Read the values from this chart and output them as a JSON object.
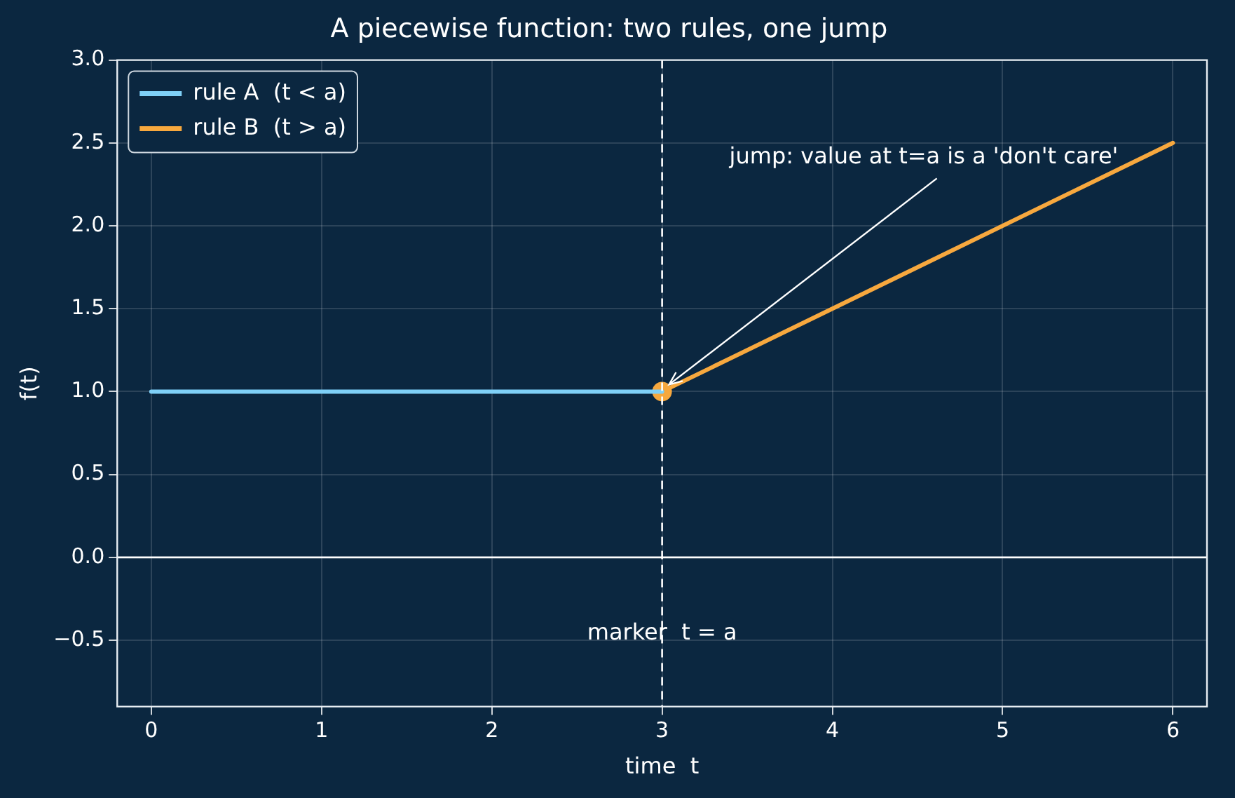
{
  "chart_data": {
    "type": "line",
    "title": "A piecewise function: two rules, one jump",
    "xlabel": "time  t",
    "ylabel": "f(t)",
    "series": [
      {
        "name": "rule A  (t < a)",
        "color": "#7fd0f7",
        "x": [
          0,
          3
        ],
        "values": [
          1,
          1
        ]
      },
      {
        "name": "rule B  (t > a)",
        "color": "#f7a83e",
        "x": [
          3,
          6
        ],
        "values": [
          1,
          2.5
        ]
      },
      {
        "type": "scatter",
        "color": "#f7a83e",
        "marker": "circle",
        "x": [
          3
        ],
        "values": [
          1
        ]
      }
    ],
    "xlim": [
      -0.2,
      6.2
    ],
    "xticks": [
      0,
      1,
      2,
      3,
      4,
      5,
      6
    ],
    "ylim": [
      -0.9,
      3.0
    ],
    "yticks": [
      {
        "value": -0.5,
        "label": "−0.5"
      },
      {
        "value": 0,
        "label": "0.0"
      },
      {
        "value": 0.5,
        "label": "0.5"
      },
      {
        "value": 1,
        "label": "1.0"
      },
      {
        "value": 1.5,
        "label": "1.5"
      },
      {
        "value": 2,
        "label": "2.0"
      },
      {
        "value": 2.5,
        "label": "2.5"
      },
      {
        "value": 3,
        "label": "3.0"
      }
    ],
    "ref_lines": [
      {
        "axis": "x",
        "value": 3,
        "label": "marker  t = a",
        "color": "#ffffff",
        "line_style": "dashed"
      },
      {
        "axis": "y",
        "value": 0,
        "color": "#ffffff",
        "line_style": "solid"
      }
    ],
    "annotations": [
      {
        "text": "jump: value at t=a is a 'don't care'",
        "x": 3,
        "y": 1
      }
    ],
    "grid": true,
    "legend": "top left",
    "line_style": "solid"
  }
}
